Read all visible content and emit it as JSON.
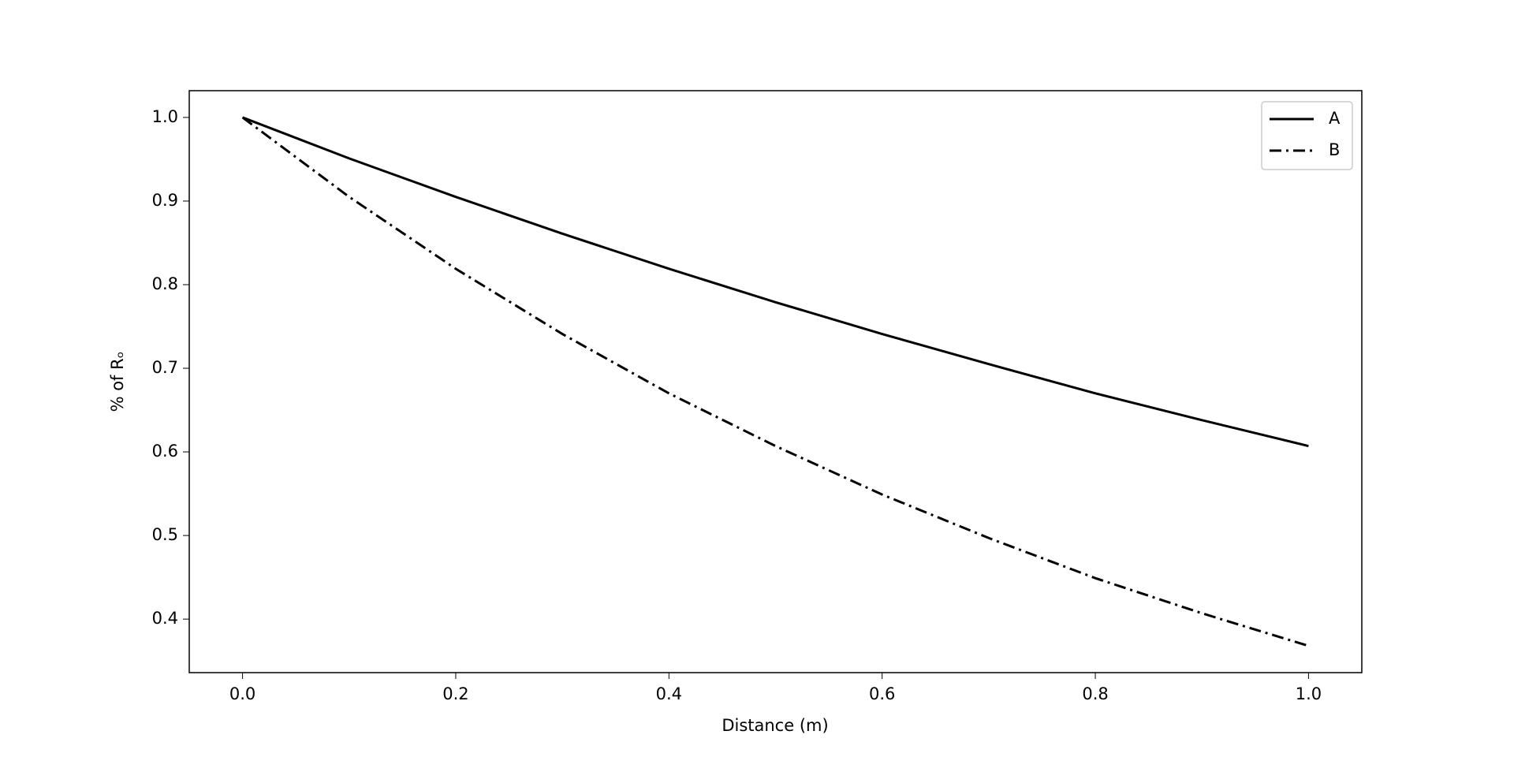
{
  "chart_data": {
    "type": "line",
    "xlabel": "Distance (m)",
    "ylabel": "% of Rₒ",
    "x": [
      0,
      0.1,
      0.2,
      0.3,
      0.4,
      0.5,
      0.6,
      0.7,
      0.8,
      0.9,
      1
    ],
    "series": [
      {
        "name": "A",
        "color": "#000000",
        "linestyle": "solid",
        "values": [
          1,
          0.951,
          0.905,
          0.861,
          0.819,
          0.779,
          0.741,
          0.705,
          0.67,
          0.638,
          0.607
        ]
      },
      {
        "name": "B",
        "color": "#000000",
        "linestyle": "dashdot",
        "values": [
          1,
          0.905,
          0.819,
          0.741,
          0.67,
          0.607,
          0.549,
          0.497,
          0.449,
          0.407,
          0.368
        ]
      }
    ],
    "xlim": [
      -0.05,
      1.05
    ],
    "ylim": [
      0.336,
      1.032
    ],
    "xticks": [
      {
        "value": 0,
        "label": "0.0"
      },
      0.2,
      0.4,
      0.6,
      0.8,
      {
        "value": 1,
        "label": "1.0"
      }
    ],
    "yticks": [
      0.4,
      0.5,
      0.6,
      0.7,
      0.8,
      0.9,
      {
        "value": 1,
        "label": "1.0"
      }
    ],
    "grid": false,
    "legend": "upper right"
  }
}
